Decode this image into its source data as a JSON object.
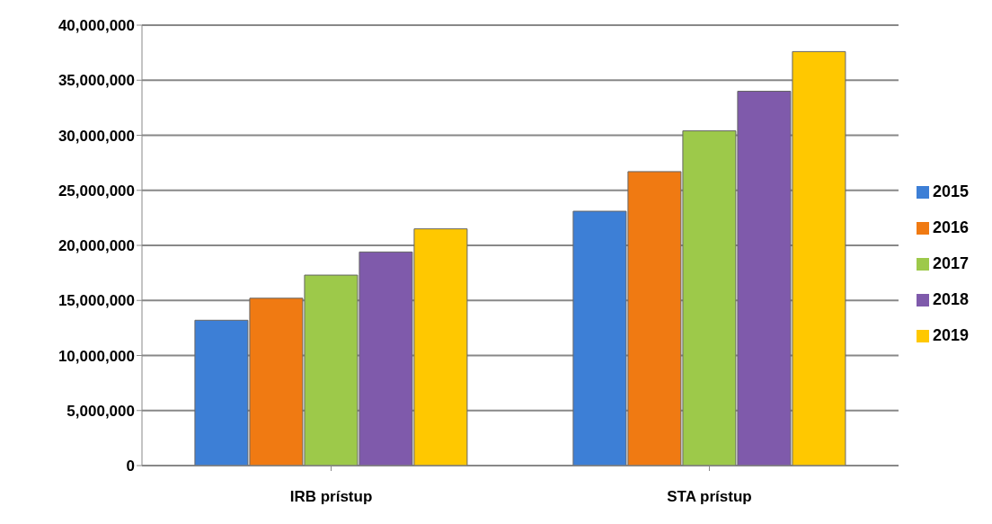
{
  "chart_data": {
    "type": "bar",
    "categories": [
      "IRB prístup",
      "STA prístup"
    ],
    "series": [
      {
        "name": "2015",
        "color": "#3d7fd6",
        "values": [
          13200000,
          23100000
        ]
      },
      {
        "name": "2016",
        "color": "#f07a12",
        "values": [
          15200000,
          26700000
        ]
      },
      {
        "name": "2017",
        "color": "#9dc94a",
        "values": [
          17300000,
          30400000
        ]
      },
      {
        "name": "2018",
        "color": "#7f5aab",
        "values": [
          19400000,
          34000000
        ]
      },
      {
        "name": "2019",
        "color": "#ffc800",
        "values": [
          21500000,
          37600000
        ]
      }
    ],
    "ylim": [
      0,
      40000000
    ],
    "yticks": [
      0,
      {
        "value": 5000000,
        "label": "5,000,000"
      },
      {
        "value": 10000000,
        "label": "10,000,000"
      },
      {
        "value": 15000000,
        "label": "15,000,000"
      },
      {
        "value": 20000000,
        "label": "20,000,000"
      },
      {
        "value": 25000000,
        "label": "25,000,000"
      },
      {
        "value": 30000000,
        "label": "30,000,000"
      },
      {
        "value": 35000000,
        "label": "35,000,000"
      },
      {
        "value": 40000000,
        "label": "40,000,000"
      }
    ],
    "grid": "y",
    "legend": "right"
  }
}
